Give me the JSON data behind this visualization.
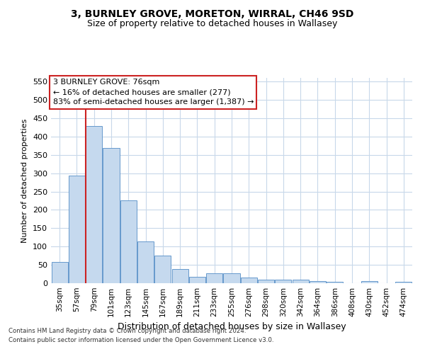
{
  "title1": "3, BURNLEY GROVE, MORETON, WIRRAL, CH46 9SD",
  "title2": "Size of property relative to detached houses in Wallasey",
  "xlabel": "Distribution of detached houses by size in Wallasey",
  "ylabel": "Number of detached properties",
  "categories": [
    "35sqm",
    "57sqm",
    "79sqm",
    "101sqm",
    "123sqm",
    "145sqm",
    "167sqm",
    "189sqm",
    "211sqm",
    "233sqm",
    "255sqm",
    "276sqm",
    "298sqm",
    "320sqm",
    "342sqm",
    "364sqm",
    "386sqm",
    "408sqm",
    "430sqm",
    "452sqm",
    "474sqm"
  ],
  "values": [
    57,
    293,
    428,
    368,
    226,
    113,
    76,
    38,
    18,
    27,
    27,
    15,
    10,
    10,
    10,
    6,
    4,
    0,
    6,
    0,
    4
  ],
  "bar_color": "#c5d9ee",
  "bar_edge_color": "#6699cc",
  "highlight_index": 2,
  "highlight_color": "#cc2222",
  "ylim": [
    0,
    560
  ],
  "yticks": [
    0,
    50,
    100,
    150,
    200,
    250,
    300,
    350,
    400,
    450,
    500,
    550
  ],
  "annotation_title": "3 BURNLEY GROVE: 76sqm",
  "annotation_line1": "← 16% of detached houses are smaller (277)",
  "annotation_line2": "83% of semi-detached houses are larger (1,387) →",
  "footnote1": "Contains HM Land Registry data © Crown copyright and database right 2024.",
  "footnote2": "Contains public sector information licensed under the Open Government Licence v3.0.",
  "bg_color": "#ffffff",
  "grid_color": "#c8d8ea"
}
